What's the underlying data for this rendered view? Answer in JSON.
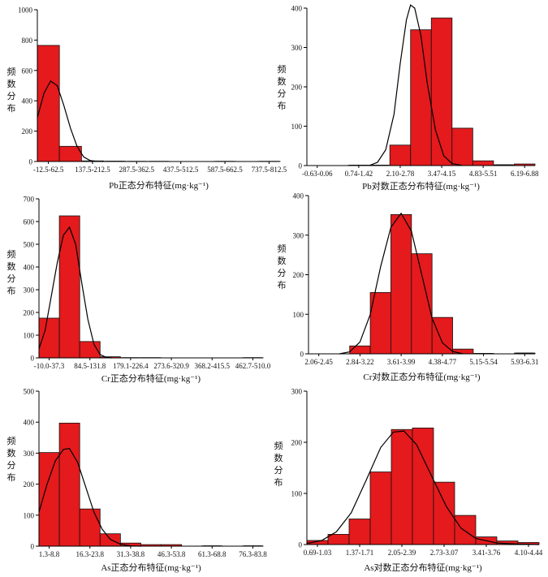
{
  "chart_data": [
    {
      "type": "bar",
      "title": "",
      "ylabel": "频数分布",
      "xlabel": "Pb正态分布特征(mg·kg⁻¹)",
      "categories": [
        "-12.5-62.5",
        "62.5-137.5",
        "137.5-212.5",
        "212.5-287.5",
        "287.5-362.5",
        "362.5-437.5",
        "437.5-512.5",
        "512.5-587.5",
        "587.5-662.5",
        "662.5-737.5",
        "737.5-812.5"
      ],
      "tick_labels": [
        "-12.5-62.5",
        "137.5-212.5",
        "287.5-362.5",
        "437.5-512.5",
        "587.5-662.5",
        "737.5-812.5"
      ],
      "values": [
        765,
        100,
        4,
        2,
        1,
        1,
        0,
        0,
        1,
        0,
        1
      ],
      "curve": [
        [
          0,
          290
        ],
        [
          0.3,
          450
        ],
        [
          0.6,
          530
        ],
        [
          0.9,
          500
        ],
        [
          1.2,
          370
        ],
        [
          1.5,
          220
        ],
        [
          1.8,
          100
        ],
        [
          2.1,
          30
        ],
        [
          2.4,
          6
        ],
        [
          2.7,
          1
        ],
        [
          3,
          0
        ]
      ],
      "ylim": [
        0,
        1000
      ],
      "yticks": [
        0,
        200,
        400,
        600,
        800,
        1000
      ]
    },
    {
      "type": "bar",
      "title": "",
      "ylabel": "频数分布",
      "xlabel": "Pb对数正态分布特征(mg·kg⁻¹)",
      "categories": [
        "-0.63-0.06",
        "0.06-0.74",
        "0.74-1.42",
        "1.42-2.10",
        "2.10-2.78",
        "2.78-3.47",
        "3.47-4.15",
        "4.15-4.83",
        "4.83-5.51",
        "5.51-6.19",
        "6.19-6.88"
      ],
      "tick_labels": [
        "-0.63-0.06",
        "0.74-1.42",
        "2.10-2.78",
        "3.47-4.15",
        "4.83-5.51",
        "6.19-6.88"
      ],
      "values": [
        0,
        0,
        1,
        1,
        52,
        345,
        375,
        95,
        12,
        2,
        4
      ],
      "curve": [
        [
          3,
          0
        ],
        [
          3.4,
          8
        ],
        [
          3.8,
          40
        ],
        [
          4.2,
          130
        ],
        [
          4.5,
          260
        ],
        [
          4.8,
          370
        ],
        [
          5,
          408
        ],
        [
          5.2,
          400
        ],
        [
          5.5,
          330
        ],
        [
          5.8,
          210
        ],
        [
          6.2,
          90
        ],
        [
          6.6,
          25
        ],
        [
          7,
          5
        ],
        [
          7.5,
          0
        ]
      ],
      "ylim": [
        0,
        400
      ],
      "yticks": [
        0,
        100,
        200,
        300,
        400
      ]
    },
    {
      "type": "bar",
      "title": "",
      "ylabel": "频数分布",
      "xlabel": "Cr正态分布特征(mg·kg⁻¹)",
      "categories": [
        "-10.0-37.3",
        "37.3-84.5",
        "84.5-131.8",
        "131.8-179.1",
        "179.1-226.4",
        "226.4-273.6",
        "273.6-320.9",
        "320.9-368.2",
        "368.2-415.5",
        "415.5-462.7",
        "462.7-510.0"
      ],
      "tick_labels": [
        "-10.0-37.3",
        "84.5-131.8",
        "179.1-226.4",
        "273.6-320.9",
        "368.2-415.5",
        "462.7-510.0"
      ],
      "values": [
        175,
        625,
        72,
        5,
        1,
        1,
        0,
        0,
        0,
        0,
        1
      ],
      "curve": [
        [
          0,
          40
        ],
        [
          0.3,
          120
        ],
        [
          0.6,
          270
        ],
        [
          0.9,
          420
        ],
        [
          1.2,
          540
        ],
        [
          1.5,
          575
        ],
        [
          1.8,
          500
        ],
        [
          2.1,
          330
        ],
        [
          2.4,
          170
        ],
        [
          2.7,
          60
        ],
        [
          3,
          15
        ],
        [
          3.3,
          2
        ],
        [
          3.6,
          0
        ]
      ],
      "ylim": [
        0,
        700
      ],
      "yticks": [
        0,
        100,
        200,
        300,
        400,
        500,
        600,
        700
      ]
    },
    {
      "type": "bar",
      "title": "",
      "ylabel": "频数分布",
      "xlabel": "Cr对数正态分布特征(mg·kg⁻¹)",
      "categories": [
        "2.06-2.45",
        "2.45-2.84",
        "2.84-3.22",
        "3.22-3.61",
        "3.61-3.99",
        "3.99-4.38",
        "4.38-4.77",
        "4.77-5.15",
        "5.15-5.54",
        "5.54-5.93",
        "5.93-6.31"
      ],
      "tick_labels": [
        "2.06-2.45",
        "2.84-3.22",
        "3.61-3.99",
        "4.38-4.77",
        "5.15-5.54",
        "5.93-6.31"
      ],
      "values": [
        0,
        0,
        20,
        155,
        352,
        253,
        92,
        12,
        1,
        0,
        2
      ],
      "curve": [
        [
          1.5,
          0
        ],
        [
          2,
          5
        ],
        [
          2.5,
          30
        ],
        [
          3,
          100
        ],
        [
          3.5,
          220
        ],
        [
          4,
          320
        ],
        [
          4.5,
          355
        ],
        [
          5,
          310
        ],
        [
          5.5,
          200
        ],
        [
          6,
          90
        ],
        [
          6.5,
          28
        ],
        [
          7,
          6
        ],
        [
          7.5,
          0
        ]
      ],
      "ylim": [
        0,
        400
      ],
      "yticks": [
        0,
        100,
        200,
        300,
        400
      ]
    },
    {
      "type": "bar",
      "title": "",
      "ylabel": "频数分布",
      "xlabel": "As正态分布特征(mg·kg⁻¹)",
      "categories": [
        "1.3-8.8",
        "8.8-16.3",
        "16.3-23.8",
        "23.8-31.3",
        "31.3-38.8",
        "38.8-46.3",
        "46.3-53.8",
        "53.8-61.3",
        "61.3-68.8",
        "68.8-76.3",
        "76.3-83.8"
      ],
      "tick_labels": [
        "1.3-8.8",
        "16.3-23.8",
        "31.3-38.8",
        "46.3-53.8",
        "61.3-68.8",
        "76.3-83.8"
      ],
      "values": [
        302,
        397,
        120,
        40,
        10,
        5,
        5,
        0,
        1,
        0,
        1
      ],
      "curve": [
        [
          0,
          110
        ],
        [
          0.4,
          200
        ],
        [
          0.8,
          275
        ],
        [
          1.2,
          312
        ],
        [
          1.5,
          315
        ],
        [
          1.9,
          270
        ],
        [
          2.3,
          190
        ],
        [
          2.7,
          110
        ],
        [
          3.1,
          55
        ],
        [
          3.5,
          22
        ],
        [
          4,
          6
        ],
        [
          4.5,
          1
        ],
        [
          5,
          0
        ]
      ],
      "ylim": [
        0,
        500
      ],
      "yticks": [
        0,
        100,
        200,
        300,
        400,
        500
      ]
    },
    {
      "type": "bar",
      "title": "",
      "ylabel": "频数分布",
      "xlabel": "As对数正态分布特征(mg·kg⁻¹)",
      "categories": [
        "0.69-1.03",
        "1.03-1.37",
        "1.37-1.71",
        "1.71-2.05",
        "2.05-2.39",
        "2.39-2.73",
        "2.73-3.07",
        "3.07-3.41",
        "3.41-3.76",
        "3.76-4.10",
        "4.10-4.44"
      ],
      "tick_labels": [
        "0.69-1.03",
        "1.37-1.71",
        "2.05-2.39",
        "2.73-3.07",
        "3.41-3.76",
        "4.10-4.44"
      ],
      "values": [
        8,
        20,
        50,
        142,
        225,
        228,
        122,
        57,
        15,
        7,
        4
      ],
      "curve": [
        [
          0,
          2
        ],
        [
          0.7,
          8
        ],
        [
          1.4,
          25
        ],
        [
          2.1,
          62
        ],
        [
          2.8,
          125
        ],
        [
          3.5,
          190
        ],
        [
          4.1,
          220
        ],
        [
          4.6,
          222
        ],
        [
          5.2,
          195
        ],
        [
          5.9,
          135
        ],
        [
          6.6,
          75
        ],
        [
          7.3,
          32
        ],
        [
          8,
          12
        ],
        [
          9,
          3
        ],
        [
          10,
          1
        ],
        [
          11,
          0
        ]
      ],
      "ylim": [
        0,
        300
      ],
      "yticks": [
        0,
        100,
        200,
        300
      ]
    }
  ],
  "style": {
    "bar_color": "#e41a1c",
    "bar_edge": "#111111",
    "curve_color": "#000000"
  }
}
